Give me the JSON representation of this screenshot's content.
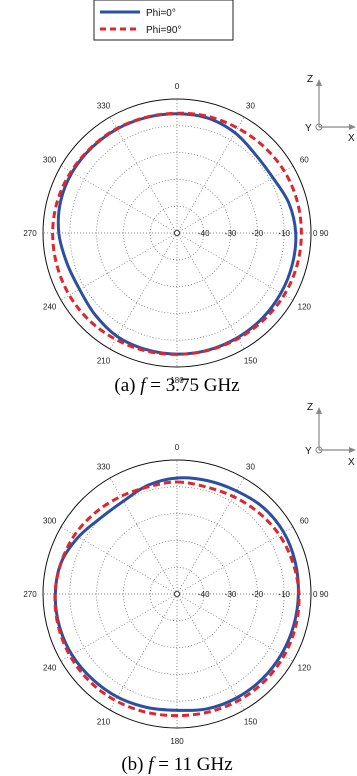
{
  "legend": {
    "items": [
      {
        "label": "Phi=0°",
        "color": "#2b4fa3",
        "dash": "solid"
      },
      {
        "label": "Phi=90°",
        "color": "#e0262b",
        "dash": "dashed"
      }
    ]
  },
  "colors": {
    "phi0": "#2b4fa3",
    "phi90": "#e0262b",
    "grid": "#555555"
  },
  "axes_icon": {
    "z": "Z",
    "y": "Y",
    "x": "X"
  },
  "chart_data": [
    {
      "type": "polar",
      "caption_prefix": "(a) ",
      "caption_var": "f",
      "caption_suffix": " = 3.75 GHz",
      "angle_ticks": [
        "0",
        "30",
        "60",
        "90",
        "120",
        "150",
        "180",
        "210",
        "240",
        "270",
        "300",
        "330"
      ],
      "radial_ticks": [
        "-40",
        "-30",
        "-20",
        "-10",
        "0"
      ],
      "rlim": [
        -50,
        0
      ],
      "angles_deg": [
        0,
        15,
        30,
        45,
        60,
        75,
        90,
        105,
        120,
        135,
        150,
        165,
        180,
        195,
        210,
        225,
        240,
        255,
        270,
        285,
        300,
        315,
        330,
        345
      ],
      "series": [
        {
          "name": "Phi=0°",
          "values": [
            -5.5,
            -5.6,
            -6.8,
            -8.6,
            -8.7,
            -6.8,
            -5.7,
            -5.4,
            -5.2,
            -5.0,
            -4.9,
            -4.8,
            -4.8,
            -5.0,
            -5.4,
            -6.8,
            -8.0,
            -7.4,
            -5.9,
            -5.0,
            -4.8,
            -5.0,
            -5.2,
            -5.4
          ]
        },
        {
          "name": "Phi=90°",
          "values": [
            -5.3,
            -5.0,
            -4.8,
            -4.3,
            -3.8,
            -3.6,
            -3.6,
            -3.6,
            -3.8,
            -4.2,
            -4.5,
            -4.7,
            -4.7,
            -4.5,
            -4.2,
            -3.8,
            -3.6,
            -3.6,
            -3.6,
            -3.8,
            -4.3,
            -4.8,
            -5.0,
            -5.3
          ]
        }
      ]
    },
    {
      "type": "polar",
      "caption_prefix": "(b) ",
      "caption_var": "f",
      "caption_suffix": " = 11 GHz",
      "angle_ticks": [
        "0",
        "30",
        "60",
        "90",
        "120",
        "150",
        "180",
        "210",
        "240",
        "270",
        "300",
        "330"
      ],
      "radial_ticks": [
        "-40",
        "-30",
        "-20",
        "-10",
        "0"
      ],
      "rlim": [
        -50,
        0
      ],
      "angles_deg": [
        0,
        15,
        30,
        45,
        60,
        75,
        90,
        105,
        120,
        135,
        150,
        165,
        180,
        195,
        210,
        225,
        240,
        255,
        270,
        285,
        300,
        315,
        330,
        345
      ],
      "series": [
        {
          "name": "Phi=0°",
          "values": [
            -6.7,
            -6.2,
            -5.6,
            -4.4,
            -4.0,
            -4.3,
            -4.7,
            -4.9,
            -5.0,
            -5.1,
            -5.3,
            -5.7,
            -6.6,
            -6.2,
            -5.6,
            -5.2,
            -4.7,
            -4.5,
            -4.6,
            -5.2,
            -7.5,
            -9.8,
            -10.0,
            -8.0
          ]
        },
        {
          "name": "Phi=90°",
          "values": [
            -8.2,
            -8.6,
            -8.0,
            -7.0,
            -5.9,
            -5.2,
            -4.5,
            -4.1,
            -3.9,
            -3.9,
            -4.1,
            -4.4,
            -4.6,
            -4.4,
            -4.1,
            -3.9,
            -3.9,
            -4.1,
            -4.5,
            -5.2,
            -5.9,
            -7.0,
            -8.0,
            -8.6
          ]
        }
      ]
    }
  ]
}
